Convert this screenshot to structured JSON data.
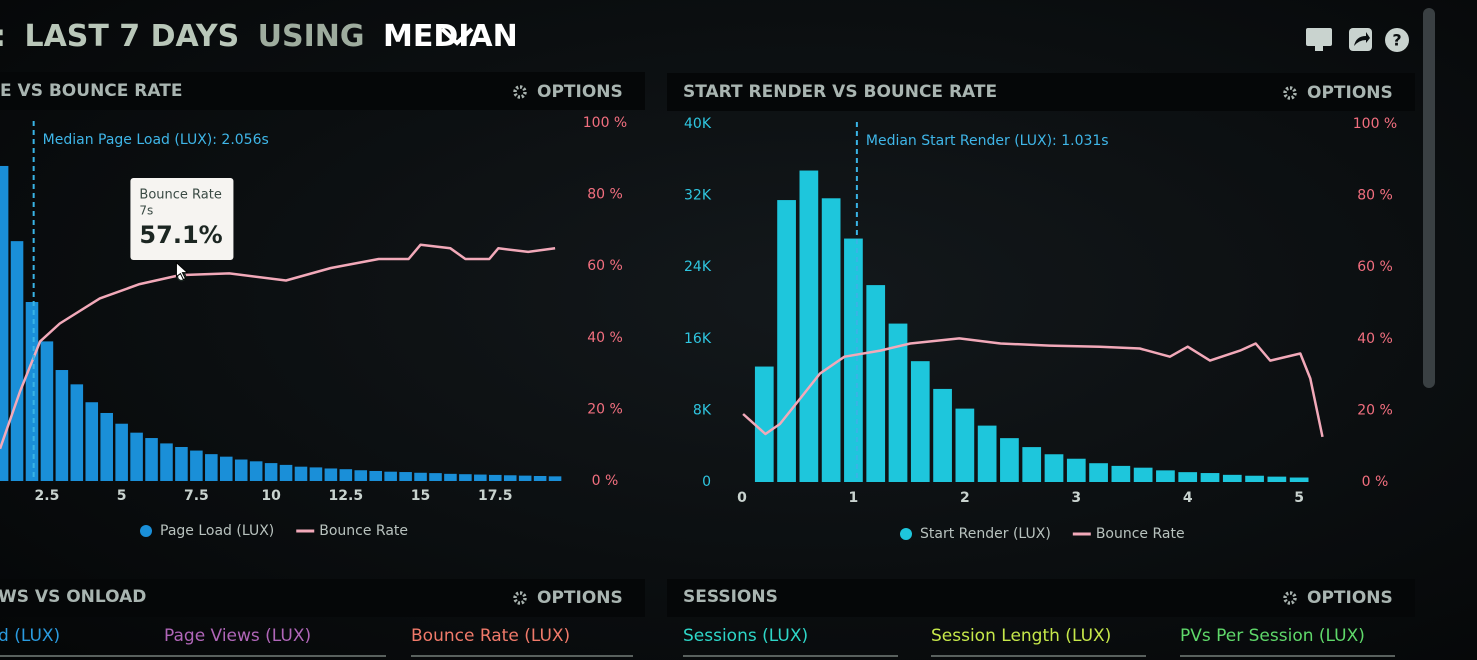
{
  "header": {
    "prefix": ":",
    "parts": [
      "LAST 7 DAYS",
      "USING",
      "MEDIAN"
    ]
  },
  "chart_data": [
    {
      "type": "bar",
      "title": "E VS BOUNCE RATE",
      "options": "OPTIONS",
      "xlim": [
        0.93,
        20
      ],
      "xticks": [
        2.5,
        5,
        7.5,
        10,
        12.5,
        15,
        17.5
      ],
      "ylim": [
        0,
        100
      ],
      "y2lim": [
        0,
        100
      ],
      "y2ticks": [
        {
          "value": 100,
          "label": "100 %"
        },
        {
          "value": 80,
          "label": "80 %"
        },
        {
          "value": 60,
          "label": "60 %"
        },
        {
          "value": 40,
          "label": "40 %"
        },
        {
          "value": 20,
          "label": "20 %"
        },
        {
          "value": 0,
          "label": "0 %"
        }
      ],
      "median": {
        "value": 2.056,
        "label": "Median Page Load (LUX): 2.056s"
      },
      "tooltip": {
        "title": "Bounce Rate",
        "x": 7,
        "x_label": "7s",
        "value": 57.1,
        "value_label": "57.1%"
      },
      "series": [
        {
          "name": "Page Load (LUX)",
          "type": "bar",
          "color": "#1a8fd8",
          "x": [
            1.0,
            1.5,
            2.0,
            2.5,
            3.0,
            3.5,
            4.0,
            4.5,
            5.0,
            5.5,
            6.0,
            6.5,
            7.0,
            7.5,
            8.0,
            8.5,
            9.0,
            9.5,
            10.0,
            10.5,
            11.0,
            11.5,
            12.0,
            12.5,
            13.0,
            13.5,
            14.0,
            14.5,
            15.0,
            15.5,
            16.0,
            16.5,
            17.0,
            17.5,
            18.0,
            18.5,
            19.0,
            19.5
          ],
          "values": [
            88,
            67,
            50,
            39,
            31,
            27,
            22,
            19,
            16,
            13.5,
            12,
            10.5,
            9.5,
            8.5,
            7.5,
            6.8,
            6,
            5.5,
            5,
            4.5,
            4,
            3.8,
            3.5,
            3.3,
            3,
            2.8,
            2.6,
            2.5,
            2.3,
            2.2,
            2,
            1.9,
            1.8,
            1.7,
            1.6,
            1.5,
            1.4,
            1.3
          ]
        },
        {
          "name": "Bounce Rate",
          "type": "line",
          "axis": "y2",
          "color": "#f2a9b9",
          "x": [
            0.93,
            1.6,
            2.27,
            2.93,
            4.27,
            5.6,
            6.95,
            8.6,
            10.5,
            12,
            13.6,
            14.6,
            15,
            16,
            16.5,
            17.3,
            17.6,
            18.6,
            19.5
          ],
          "values": [
            9,
            25,
            39,
            44,
            51,
            55,
            57.5,
            58,
            56,
            59.5,
            62,
            62,
            66,
            65,
            62,
            62,
            65,
            64,
            65
          ]
        }
      ]
    },
    {
      "type": "bar",
      "title": "START RENDER VS BOUNCE RATE",
      "options": "OPTIONS",
      "xlim": [
        0,
        5.25
      ],
      "xticks": [
        0,
        1,
        2,
        3,
        4,
        5
      ],
      "ylim": [
        0,
        40000
      ],
      "yticks": [
        {
          "value": 40000,
          "label": "40K"
        },
        {
          "value": 32000,
          "label": "32K"
        },
        {
          "value": 24000,
          "label": "24K"
        },
        {
          "value": 16000,
          "label": "16K"
        },
        {
          "value": 8000,
          "label": "8K"
        },
        0
      ],
      "y2lim": [
        0,
        100
      ],
      "y2ticks": [
        {
          "value": 100,
          "label": "100 %"
        },
        {
          "value": 80,
          "label": "80 %"
        },
        {
          "value": 60,
          "label": "60 %"
        },
        {
          "value": 40,
          "label": "40 %"
        },
        {
          "value": 20,
          "label": "20 %"
        },
        {
          "value": 0,
          "label": "0 %"
        }
      ],
      "median": {
        "value": 1.031,
        "label": "Median Start Render (LUX): 1.031s"
      },
      "series": [
        {
          "name": "Start Render (LUX)",
          "type": "bar",
          "color": "#1ec6dc",
          "x": [
            0.2,
            0.4,
            0.6,
            0.8,
            1.0,
            1.2,
            1.4,
            1.6,
            1.8,
            2.0,
            2.2,
            2.4,
            2.6,
            2.8,
            3.0,
            3.2,
            3.4,
            3.6,
            3.8,
            4.0,
            4.2,
            4.4,
            4.6,
            4.8,
            5.0
          ],
          "values": [
            12900,
            31500,
            34800,
            31700,
            27200,
            22000,
            17700,
            13500,
            10400,
            8200,
            6300,
            4900,
            3900,
            3100,
            2600,
            2100,
            1800,
            1600,
            1300,
            1100,
            1000,
            800,
            700,
            600,
            500
          ]
        },
        {
          "name": "Bounce Rate",
          "type": "line",
          "axis": "y2",
          "color": "#f2a9b9",
          "x": [
            0.01,
            0.21,
            0.34,
            0.52,
            0.7,
            0.92,
            1.24,
            1.51,
            1.95,
            2.32,
            2.76,
            3.21,
            3.57,
            3.84,
            4.0,
            4.2,
            4.47,
            4.61,
            4.74,
            5.01,
            5.1,
            5.21
          ],
          "values": [
            19,
            13.4,
            16.2,
            23.2,
            30.3,
            35,
            36.7,
            38.7,
            40.1,
            38.7,
            38.1,
            37.8,
            37.3,
            35,
            37.8,
            33.9,
            36.7,
            38.7,
            33.9,
            35.9,
            28.9,
            12.6
          ]
        }
      ]
    }
  ],
  "panels": [
    {
      "title": "WS VS ONLOAD",
      "options": "OPTIONS",
      "tabs": [
        {
          "label": "d (LUX)",
          "color": "#2a9be0"
        },
        {
          "label": "Page Views (LUX)",
          "color": "#b066b8"
        },
        {
          "label": "Bounce Rate (LUX)",
          "color": "#f07a6a"
        }
      ]
    },
    {
      "title": "SESSIONS",
      "options": "OPTIONS",
      "tabs": [
        {
          "label": "Sessions (LUX)",
          "color": "#2ed6c8"
        },
        {
          "label": "Session Length (LUX)",
          "color": "#c6e84a"
        },
        {
          "label": "PVs Per Session (LUX)",
          "color": "#5fd86a"
        }
      ]
    }
  ]
}
